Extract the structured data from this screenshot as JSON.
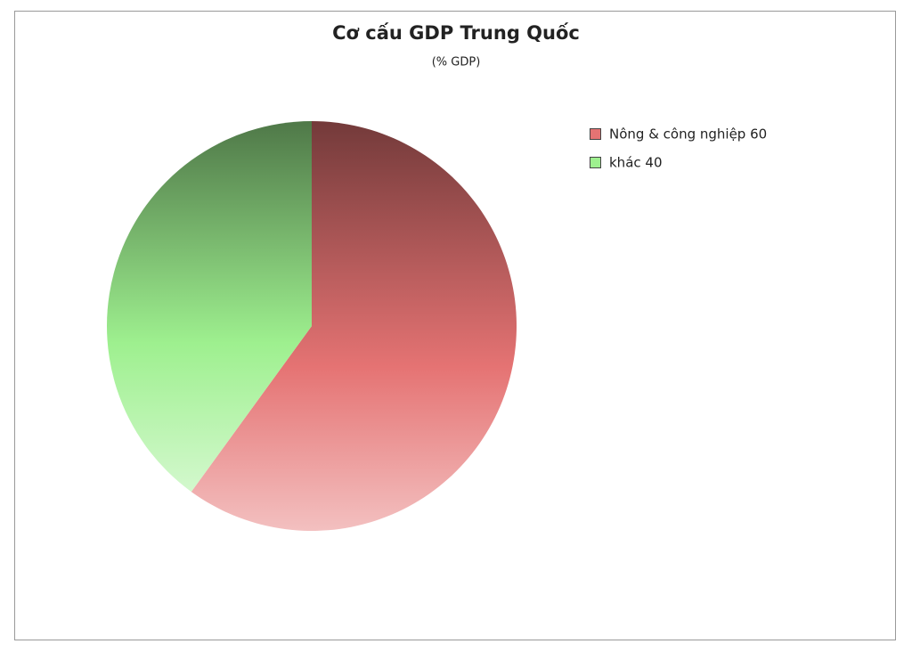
{
  "chart_data": {
    "type": "pie",
    "title": "Cơ cấu GDP Trung Quốc",
    "subtitle": "(% GDP)",
    "categories": [
      "Nông & công nghiệp 60",
      "khác 40"
    ],
    "values": [
      60,
      40
    ],
    "colors": [
      "#e57373",
      "#9ef08f"
    ],
    "legend": "top-right"
  }
}
